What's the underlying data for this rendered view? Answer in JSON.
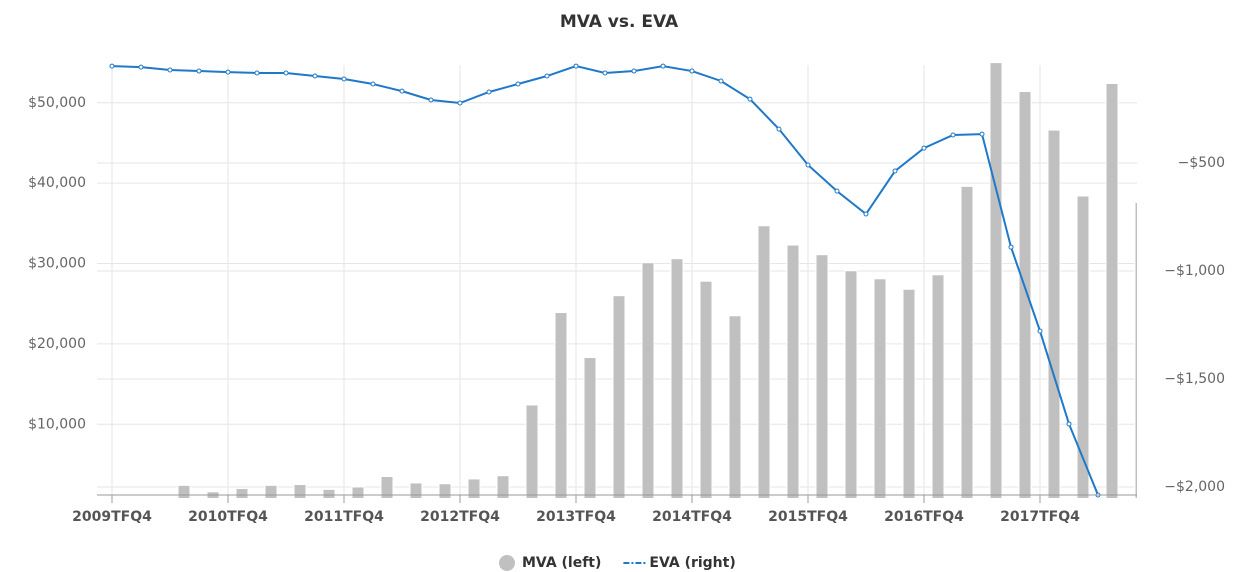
{
  "chart_data": {
    "type": "combo",
    "title": "MVA vs. EVA",
    "categories": [
      "2009TFQ4",
      null,
      null,
      null,
      "2010TFQ4",
      null,
      null,
      null,
      "2011TFQ4",
      null,
      null,
      null,
      "2012TFQ4",
      null,
      null,
      null,
      "2013TFQ4",
      null,
      null,
      null,
      "2014TFQ4",
      null,
      null,
      null,
      "2015TFQ4",
      null,
      null,
      null,
      "2016TFQ4",
      null,
      null,
      null,
      "2017TFQ4",
      null,
      null,
      null
    ],
    "series": [
      {
        "name": "MVA (left)",
        "type": "bar",
        "color": "#c0c0c0",
        "values": [
          0,
          0,
          2400,
          1600,
          2000,
          2400,
          2500,
          1900,
          2200,
          3500,
          2700,
          2600,
          3200,
          3600,
          12400,
          23900,
          18300,
          26000,
          30100,
          30600,
          27800,
          23500,
          34700,
          32300,
          31100,
          29100,
          28100,
          26800,
          28600,
          39600,
          55000,
          51400,
          46600,
          38400,
          52400,
          37600
        ]
      },
      {
        "name": "EVA (right)",
        "type": "line",
        "axis": "y2",
        "color": "#1f78c8",
        "values": [
          -51,
          -56,
          -69,
          -74,
          -79,
          -83,
          -83,
          -97,
          -111,
          -134,
          -167,
          -208,
          -222,
          -171,
          -134,
          -97,
          -51,
          -83,
          -74,
          -51,
          -74,
          -120,
          -204,
          -343,
          -509,
          -630,
          -736,
          -537,
          -431,
          -370,
          -366,
          -889,
          -1278,
          -1708,
          -2037,
          null
        ]
      }
    ],
    "ylim": [
      1200,
      54700
    ],
    "yticks": [
      {
        "value": 10000,
        "label": "$10,000"
      },
      {
        "value": 20000,
        "label": "$20,000"
      },
      {
        "value": 30000,
        "label": "$30,000"
      },
      {
        "value": 40000,
        "label": "$40,000"
      },
      {
        "value": 50000,
        "label": "$50,000"
      }
    ],
    "y2lim": [
      -2037,
      -46
    ],
    "y2ticks": [
      {
        "value": -2000,
        "label": "−$2,000"
      },
      {
        "value": -1500,
        "label": "−$1,500"
      },
      {
        "value": -1000,
        "label": "−$1,000"
      },
      {
        "value": -500,
        "label": "−$500"
      }
    ],
    "grid": true,
    "legend": "bottom"
  }
}
